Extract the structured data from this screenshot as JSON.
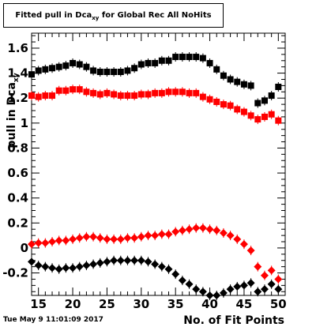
{
  "chart_data": {
    "type": "scatter",
    "title": {
      "prefix": "Fitted pull in Dca",
      "subscript": "xy",
      "suffix": " for Global Rec All NoHits"
    },
    "xlabel": "No. of Fit Points",
    "ylabel": {
      "prefix": "pull in Dca",
      "subscript": "xy"
    },
    "xlim": [
      14,
      51
    ],
    "ylim": [
      -0.38,
      1.72
    ],
    "x_ticks": [
      15,
      20,
      25,
      30,
      35,
      40,
      45,
      50
    ],
    "y_ticks": [
      -0.2,
      0,
      0.2,
      0.4,
      0.6,
      0.8,
      1,
      1.2,
      1.4,
      1.6
    ],
    "series": [
      {
        "color": "#000000",
        "marker": "square",
        "x": [
          14,
          15,
          16,
          17,
          18,
          19,
          20,
          21,
          22,
          23,
          24,
          25,
          26,
          27,
          28,
          29,
          30,
          31,
          32,
          33,
          34,
          35,
          36,
          37,
          38,
          39,
          40,
          41,
          42,
          43,
          44,
          45,
          46,
          47,
          48,
          49,
          50
        ],
        "y": [
          1.39,
          1.42,
          1.43,
          1.44,
          1.45,
          1.46,
          1.48,
          1.47,
          1.45,
          1.42,
          1.41,
          1.41,
          1.41,
          1.41,
          1.42,
          1.44,
          1.47,
          1.48,
          1.48,
          1.5,
          1.5,
          1.53,
          1.53,
          1.53,
          1.53,
          1.52,
          1.48,
          1.43,
          1.38,
          1.35,
          1.33,
          1.31,
          1.3,
          1.16,
          1.18,
          1.22,
          1.29
        ]
      },
      {
        "color": "#ff0000",
        "marker": "square",
        "x": [
          14,
          15,
          16,
          17,
          18,
          19,
          20,
          21,
          22,
          23,
          24,
          25,
          26,
          27,
          28,
          29,
          30,
          31,
          32,
          33,
          34,
          35,
          36,
          37,
          38,
          39,
          40,
          41,
          42,
          43,
          44,
          45,
          46,
          47,
          48,
          49,
          50
        ],
        "y": [
          1.22,
          1.21,
          1.22,
          1.22,
          1.26,
          1.26,
          1.27,
          1.27,
          1.25,
          1.24,
          1.23,
          1.24,
          1.23,
          1.22,
          1.22,
          1.22,
          1.23,
          1.23,
          1.24,
          1.24,
          1.25,
          1.25,
          1.25,
          1.24,
          1.24,
          1.21,
          1.19,
          1.17,
          1.15,
          1.14,
          1.11,
          1.09,
          1.06,
          1.03,
          1.05,
          1.07,
          1.02
        ]
      },
      {
        "color": "#ff0000",
        "marker": "diamond",
        "x": [
          14,
          15,
          16,
          17,
          18,
          19,
          20,
          21,
          22,
          23,
          24,
          25,
          26,
          27,
          28,
          29,
          30,
          31,
          32,
          33,
          34,
          35,
          36,
          37,
          38,
          39,
          40,
          41,
          42,
          43,
          44,
          45,
          46,
          47,
          48,
          49,
          50
        ],
        "y": [
          0.03,
          0.04,
          0.04,
          0.05,
          0.06,
          0.06,
          0.07,
          0.08,
          0.09,
          0.09,
          0.08,
          0.07,
          0.07,
          0.07,
          0.08,
          0.08,
          0.09,
          0.1,
          0.1,
          0.11,
          0.11,
          0.13,
          0.14,
          0.15,
          0.16,
          0.16,
          0.15,
          0.14,
          0.12,
          0.1,
          0.07,
          0.03,
          -0.02,
          -0.15,
          -0.22,
          -0.18,
          -0.25
        ]
      },
      {
        "color": "#000000",
        "marker": "diamond",
        "x": [
          14,
          15,
          16,
          17,
          18,
          19,
          20,
          21,
          22,
          23,
          24,
          25,
          26,
          27,
          28,
          29,
          30,
          31,
          32,
          33,
          34,
          35,
          36,
          37,
          38,
          39,
          40,
          41,
          42,
          43,
          44,
          45,
          46,
          47,
          48,
          49,
          50
        ],
        "y": [
          -0.11,
          -0.14,
          -0.15,
          -0.16,
          -0.17,
          -0.16,
          -0.16,
          -0.15,
          -0.14,
          -0.13,
          -0.12,
          -0.11,
          -0.1,
          -0.1,
          -0.1,
          -0.1,
          -0.1,
          -0.11,
          -0.13,
          -0.15,
          -0.17,
          -0.21,
          -0.26,
          -0.29,
          -0.33,
          -0.35,
          -0.38,
          -0.38,
          -0.36,
          -0.33,
          -0.31,
          -0.3,
          -0.28,
          -0.35,
          -0.33,
          -0.29,
          -0.33
        ]
      }
    ]
  },
  "timestamp": "Tue May  9 11:01:09 2017"
}
